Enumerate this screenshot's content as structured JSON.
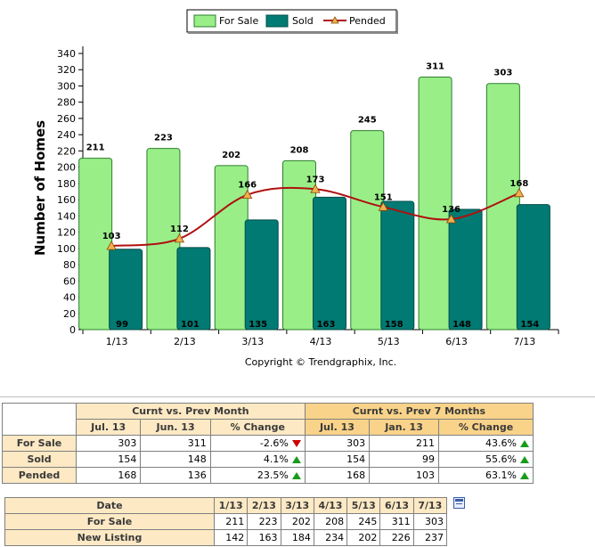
{
  "chart_data": {
    "type": "bar",
    "categories": [
      "1/13",
      "2/13",
      "3/13",
      "4/13",
      "5/13",
      "6/13",
      "7/13"
    ],
    "series": [
      {
        "name": "For Sale",
        "type": "bar",
        "color": "#99ee88",
        "values": [
          211,
          223,
          202,
          208,
          245,
          311,
          303
        ]
      },
      {
        "name": "Sold",
        "type": "bar",
        "color": "#007a72",
        "values": [
          99,
          101,
          135,
          163,
          158,
          148,
          154
        ]
      },
      {
        "name": "Pended",
        "type": "line",
        "color": "#b01010",
        "marker_color": "#f0b050",
        "values": [
          103,
          112,
          166,
          173,
          151,
          136,
          168
        ]
      }
    ],
    "ylabel": "Number of Homes",
    "xlabel": "",
    "ylim": [
      0,
      340
    ],
    "yticks": [
      0,
      20,
      40,
      60,
      80,
      100,
      120,
      140,
      160,
      180,
      200,
      220,
      240,
      260,
      280,
      300,
      320,
      340
    ],
    "legend_position": "top-center",
    "grid": false,
    "copyright": "Copyright © Trendgraphix, Inc."
  },
  "comparison_table": {
    "group_prev_month": "Curnt vs. Prev Month",
    "group_prev_7": "Curnt vs. Prev 7 Months",
    "col_jul": "Jul. 13",
    "col_jun": "Jun. 13",
    "col_change": "% Change",
    "col_jan": "Jan. 13",
    "rows": [
      {
        "label": "For Sale",
        "jul": "303",
        "jun": "311",
        "chg_month": "-2.6%",
        "dir_month": "down",
        "jul2": "303",
        "jan": "211",
        "chg_7": "43.6%",
        "dir_7": "up"
      },
      {
        "label": "Sold",
        "jul": "154",
        "jun": "148",
        "chg_month": "4.1%",
        "dir_month": "up",
        "jul2": "154",
        "jan": "99",
        "chg_7": "55.6%",
        "dir_7": "up"
      },
      {
        "label": "Pended",
        "jul": "168",
        "jun": "136",
        "chg_month": "23.5%",
        "dir_month": "up",
        "jul2": "168",
        "jan": "103",
        "chg_7": "63.1%",
        "dir_7": "up"
      }
    ]
  },
  "history_table": {
    "date_label": "Date",
    "dates": [
      "1/13",
      "2/13",
      "3/13",
      "4/13",
      "5/13",
      "6/13",
      "7/13"
    ],
    "rows": [
      {
        "label": "For Sale",
        "values": [
          "211",
          "223",
          "202",
          "208",
          "245",
          "311",
          "303"
        ]
      },
      {
        "label": "New Listing",
        "values": [
          "142",
          "163",
          "184",
          "234",
          "202",
          "226",
          "237"
        ]
      }
    ]
  },
  "export_icon": "table-export-icon"
}
